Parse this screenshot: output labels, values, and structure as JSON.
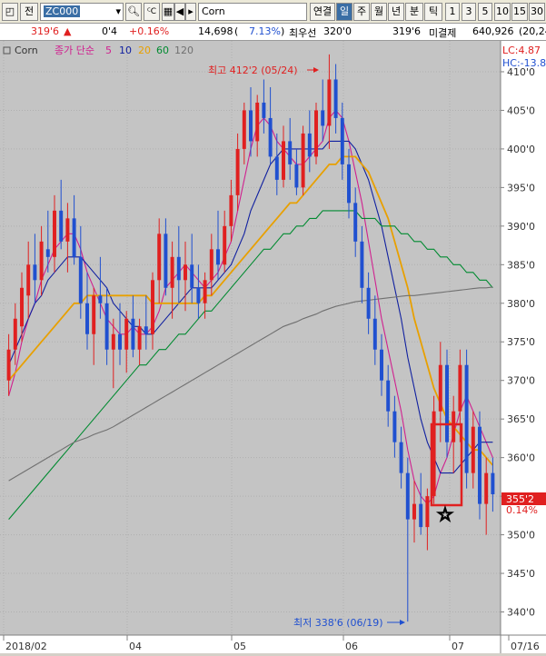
{
  "toolbar": {
    "mode_label": "전",
    "symbol": "ZC000",
    "symbol_name": "Corn",
    "tab_continuous": "연결",
    "tab_day": "일",
    "tab_week": "주",
    "tab_month": "월",
    "tab_year": "년",
    "tab_minute": "분",
    "tab_tick": "틱",
    "periods": [
      "1",
      "3",
      "5",
      "10",
      "15",
      "30"
    ]
  },
  "quote": {
    "price": "319'6",
    "direction": "▲",
    "change": "0'4",
    "change_pct": "+0.16%",
    "volume": "14,698",
    "volume_paren_open": "(",
    "volume_pct": "7.13%",
    "volume_paren_close": ")",
    "best_bid_label": "최우선",
    "best_bid_left": "320'0",
    "best_bid_right": "319'6",
    "open_interest_label": "미결제",
    "open_interest": "640,926",
    "open_interest_extra": "(20,24"
  },
  "legend": {
    "symbol": "Corn",
    "ma_label": "종가 단순",
    "ma_periods": [
      {
        "label": "5",
        "color": "#d0208f"
      },
      {
        "label": "10",
        "color": "#1020a0"
      },
      {
        "label": "20",
        "color": "#e8a000"
      },
      {
        "label": "60",
        "color": "#008a30"
      },
      {
        "label": "120",
        "color": "#707070"
      }
    ]
  },
  "top_right": {
    "lc": "LC:4.87",
    "hc": "HC:-13.8"
  },
  "last_price_tag": {
    "price": "355'2",
    "pct": "0.14%"
  },
  "colors": {
    "up": "#e02020",
    "down": "#2050d0",
    "plot_bg": "#c4c4c4",
    "marker_box": "#e02020"
  },
  "chart_data": {
    "type": "candlestick",
    "x_ticks": [
      "2018/02",
      "04",
      "05",
      "06",
      "07",
      "07/16"
    ],
    "y_ticks": [
      "340'0",
      "345'0",
      "350'0",
      "355'0",
      "360'0",
      "365'0",
      "370'0",
      "375'0",
      "380'0",
      "385'0",
      "390'0",
      "395'0",
      "400'0",
      "405'0",
      "410'0"
    ],
    "ylim": [
      337,
      414
    ],
    "high_annotation": "최고 412'2 (05/24)",
    "low_annotation": "최저 338'6 (06/19)",
    "candles": [
      [
        370,
        376,
        368,
        374
      ],
      [
        374,
        380,
        372,
        378
      ],
      [
        377,
        384,
        375,
        382
      ],
      [
        381,
        388,
        378,
        385
      ],
      [
        385,
        389,
        380,
        383
      ],
      [
        383,
        390,
        381,
        388
      ],
      [
        387,
        392,
        384,
        386
      ],
      [
        386,
        394,
        384,
        392
      ],
      [
        392,
        396,
        387,
        388
      ],
      [
        388,
        393,
        384,
        391
      ],
      [
        391,
        394,
        385,
        386
      ],
      [
        386,
        390,
        378,
        380
      ],
      [
        380,
        384,
        374,
        376
      ],
      [
        376,
        382,
        372,
        381
      ],
      [
        381,
        386,
        378,
        380
      ],
      [
        380,
        382,
        372,
        374
      ],
      [
        374,
        378,
        369,
        376
      ],
      [
        376,
        380,
        372,
        374
      ],
      [
        374,
        379,
        371,
        378
      ],
      [
        378,
        381,
        373,
        374
      ],
      [
        374,
        378,
        372,
        377
      ],
      [
        377,
        381,
        374,
        376
      ],
      [
        376,
        384,
        374,
        383
      ],
      [
        383,
        391,
        380,
        389
      ],
      [
        389,
        391,
        381,
        382
      ],
      [
        382,
        388,
        378,
        386
      ],
      [
        386,
        390,
        380,
        383
      ],
      [
        383,
        388,
        379,
        385
      ],
      [
        385,
        389,
        380,
        382
      ],
      [
        382,
        385,
        378,
        380
      ],
      [
        380,
        384,
        378,
        383
      ],
      [
        383,
        389,
        381,
        387
      ],
      [
        387,
        392,
        383,
        385
      ],
      [
        385,
        392,
        384,
        390
      ],
      [
        390,
        396,
        388,
        394
      ],
      [
        394,
        402,
        392,
        400
      ],
      [
        400,
        406,
        398,
        405
      ],
      [
        405,
        408,
        399,
        401
      ],
      [
        401,
        407,
        399,
        406
      ],
      [
        406,
        409,
        402,
        404
      ],
      [
        404,
        408,
        398,
        399
      ],
      [
        399,
        402,
        394,
        396
      ],
      [
        396,
        403,
        395,
        401
      ],
      [
        401,
        404,
        396,
        398
      ],
      [
        398,
        400,
        394,
        395
      ],
      [
        395,
        403,
        394,
        402
      ],
      [
        402,
        405,
        397,
        399
      ],
      [
        399,
        406,
        398,
        405
      ],
      [
        405,
        409,
        401,
        403
      ],
      [
        403,
        412.25,
        400,
        409
      ],
      [
        409,
        411,
        402,
        404
      ],
      [
        404,
        406,
        396,
        398
      ],
      [
        398,
        400,
        391,
        393
      ],
      [
        393,
        395,
        386,
        388
      ],
      [
        388,
        390,
        380,
        382
      ],
      [
        382,
        384,
        376,
        378
      ],
      [
        378,
        381,
        372,
        374
      ],
      [
        374,
        376,
        368,
        370
      ],
      [
        370,
        372,
        364,
        366
      ],
      [
        366,
        368,
        360,
        362
      ],
      [
        362,
        364,
        356,
        358
      ],
      [
        358,
        360,
        338.75,
        352
      ],
      [
        352,
        357,
        349,
        354
      ],
      [
        354,
        358,
        350,
        351
      ],
      [
        351,
        356,
        348,
        355
      ],
      [
        355,
        368,
        354,
        366
      ],
      [
        366,
        375,
        362,
        372
      ],
      [
        372,
        374,
        360,
        362
      ],
      [
        362,
        368,
        358,
        366
      ],
      [
        366,
        374,
        362,
        372
      ],
      [
        372,
        374,
        356,
        358
      ],
      [
        358,
        366,
        356,
        364
      ],
      [
        364,
        366,
        352,
        354
      ],
      [
        354,
        360,
        350,
        358
      ],
      [
        358,
        360,
        353,
        355.25
      ]
    ],
    "series": [
      {
        "name": "5",
        "values": [
          368,
          371,
          375,
          378,
          380,
          383,
          385,
          387,
          388,
          389,
          389,
          387,
          384,
          382,
          380,
          378,
          377,
          376,
          376,
          377,
          376,
          376,
          377,
          379,
          382,
          383,
          384,
          385,
          384,
          383,
          382,
          383,
          384,
          386,
          388,
          392,
          396,
          400,
          403,
          404,
          403,
          401,
          400,
          399,
          398,
          398,
          399,
          400,
          401,
          404,
          405,
          404,
          401,
          397,
          393,
          388,
          383,
          378,
          374,
          370,
          366,
          361,
          357,
          355,
          354,
          355,
          358,
          360,
          363,
          366,
          368,
          366,
          364,
          362,
          360
        ]
      },
      {
        "name": "10",
        "values": [
          372,
          374,
          376,
          378,
          380,
          381,
          383,
          384,
          385,
          386,
          386,
          386,
          385,
          384,
          383,
          382,
          380,
          379,
          378,
          377,
          377,
          376,
          376,
          377,
          378,
          379,
          380,
          381,
          382,
          382,
          382,
          382,
          383,
          384,
          385,
          387,
          389,
          392,
          394,
          396,
          398,
          399,
          400,
          400,
          400,
          400,
          400,
          400,
          400,
          401,
          401,
          401,
          401,
          400,
          398,
          396,
          393,
          390,
          386,
          382,
          378,
          373,
          369,
          365,
          362,
          360,
          358,
          358,
          358,
          359,
          360,
          361,
          362,
          362,
          362
        ]
      },
      {
        "name": "20",
        "values": [
          370,
          371,
          372,
          373,
          374,
          375,
          376,
          377,
          378,
          379,
          380,
          380,
          381,
          381,
          381,
          381,
          381,
          381,
          381,
          381,
          381,
          381,
          380,
          380,
          380,
          380,
          380,
          380,
          380,
          380,
          381,
          381,
          382,
          383,
          384,
          385,
          386,
          387,
          388,
          389,
          390,
          391,
          392,
          393,
          393,
          394,
          395,
          396,
          397,
          398,
          398,
          399,
          399,
          399,
          398,
          397,
          395,
          393,
          391,
          388,
          385,
          382,
          378,
          375,
          372,
          369,
          367,
          365,
          364,
          363,
          362,
          361,
          361,
          360,
          359
        ]
      },
      {
        "name": "60",
        "values": [
          352,
          353,
          354,
          355,
          356,
          357,
          358,
          359,
          360,
          361,
          362,
          363,
          364,
          365,
          366,
          367,
          368,
          369,
          370,
          371,
          372,
          372,
          373,
          374,
          374,
          375,
          376,
          376,
          377,
          378,
          379,
          379,
          380,
          381,
          382,
          383,
          384,
          385,
          386,
          387,
          387,
          388,
          389,
          389,
          390,
          390,
          391,
          391,
          392,
          392,
          392,
          392,
          392,
          392,
          391,
          391,
          391,
          390,
          390,
          390,
          389,
          389,
          388,
          388,
          387,
          387,
          386,
          386,
          385,
          385,
          384,
          384,
          383,
          383,
          382
        ]
      },
      {
        "name": "120",
        "values": [
          357,
          357.5,
          358,
          358.5,
          359,
          359.5,
          360,
          360.5,
          361,
          361.5,
          362,
          362.3,
          362.6,
          363,
          363.3,
          363.6,
          364,
          364.5,
          365,
          365.5,
          366,
          366.5,
          367,
          367.5,
          368,
          368.5,
          369,
          369.5,
          370,
          370.5,
          371,
          371.5,
          372,
          372.5,
          373,
          373.5,
          374,
          374.5,
          375,
          375.5,
          376,
          376.5,
          377,
          377.3,
          377.6,
          378,
          378.3,
          378.6,
          379,
          379.3,
          379.6,
          379.8,
          380,
          380.2,
          380.3,
          380.4,
          380.5,
          380.6,
          380.7,
          380.8,
          380.9,
          381,
          381,
          381.1,
          381.2,
          381.3,
          381.4,
          381.5,
          381.6,
          381.7,
          381.8,
          381.9,
          382,
          382,
          382.1
        ]
      }
    ]
  }
}
